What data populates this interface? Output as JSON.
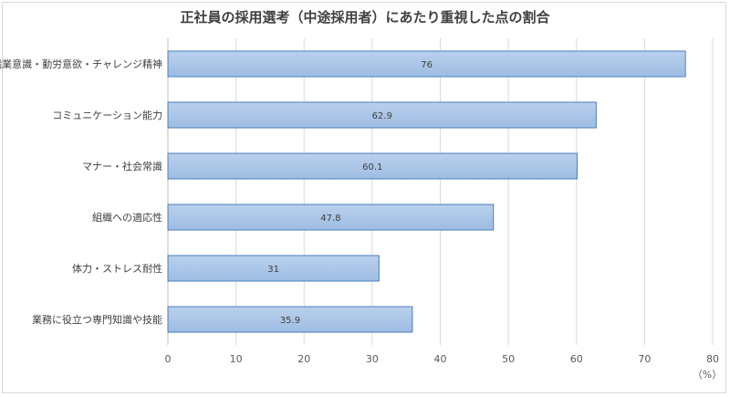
{
  "chart_data": {
    "type": "bar",
    "orientation": "horizontal",
    "title": "正社員の採用選考（中途採用者）にあたり重視した点の割合",
    "categories": [
      "職業意識・勤労意欲・チャレンジ精神",
      "コミュニケーション能力",
      "マナー・社会常識",
      "組織への適応性",
      "体力・ストレス耐性",
      "業務に役立つ専門知識や技能"
    ],
    "values": [
      76,
      62.9,
      60.1,
      47.8,
      31,
      35.9
    ],
    "value_labels": [
      "76",
      "62.9",
      "60.1",
      "47.8",
      "31",
      "35.9"
    ],
    "xlim": [
      0,
      80
    ],
    "x_ticks": [
      0,
      10,
      20,
      30,
      40,
      50,
      60,
      70,
      80
    ],
    "x_unit": "（%）",
    "grid": true,
    "colors": {
      "bar_fill_top": "#b9d0ec",
      "bar_fill_bottom": "#9ebde3",
      "bar_stroke": "#4a7ebb",
      "grid": "#d9d9d9"
    }
  }
}
